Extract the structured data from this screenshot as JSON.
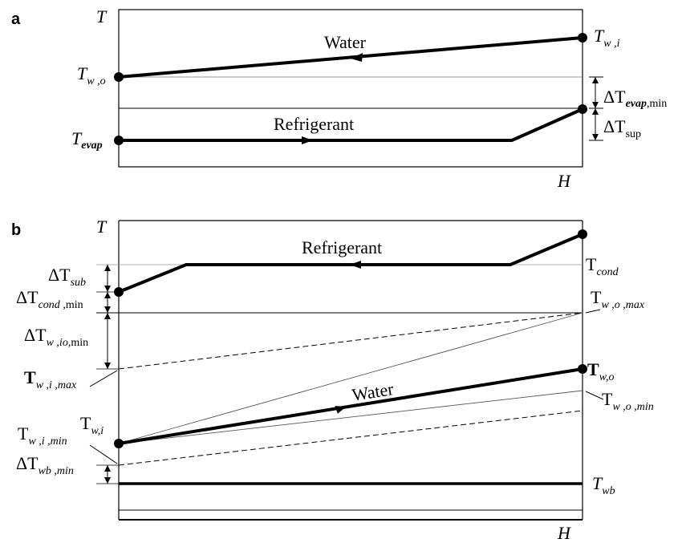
{
  "panel_a": {
    "panel_label": "a",
    "axis_y_label": "T",
    "axis_x_label": "H",
    "water_label": "Water",
    "refrigerant_label": "Refrigerant",
    "t_w_i": {
      "main": "T",
      "sub": "w ,i"
    },
    "t_w_o": {
      "main": "T",
      "sub": "w ,o"
    },
    "t_evap": {
      "main": "T",
      "sub": "evap"
    },
    "dt_evap_min": {
      "main": "ΔT",
      "sub": "evap",
      "sub2": ",min"
    },
    "dt_sup": {
      "main": "ΔT",
      "sub": "sup"
    }
  },
  "panel_b": {
    "panel_label": "b",
    "axis_y_label": "T",
    "axis_x_label": "H",
    "refrigerant_label": "Refrigerant",
    "water_label": "Water",
    "t_cond": {
      "main": "T",
      "sub": "cond"
    },
    "dt_sub": {
      "main": "ΔT",
      "sub": "sub"
    },
    "dt_cond_min": {
      "main": "ΔT",
      "sub": "cond",
      "sub2": " ,min"
    },
    "dt_w_io_min": {
      "main": "ΔT",
      "sub": "w ,io",
      "sub2": ",min"
    },
    "t_w_i_max": {
      "main": "T",
      "sub": "w ,i ,max"
    },
    "t_w_i_min": {
      "main": "T",
      "sub": "w ,i ,min"
    },
    "t_w_i": {
      "main": "T",
      "sub": "w,i"
    },
    "dt_wb_min": {
      "main": "ΔT",
      "sub": "wb ,min"
    },
    "t_w_o_max": {
      "main": "T",
      "sub": "w ,o ,max"
    },
    "t_w_o": {
      "main": "T",
      "sub": "w,o"
    },
    "t_w_o_min": {
      "main": "T",
      "sub": "w ,o ,min"
    },
    "t_wb": {
      "main": "T",
      "sub": "wb"
    }
  }
}
